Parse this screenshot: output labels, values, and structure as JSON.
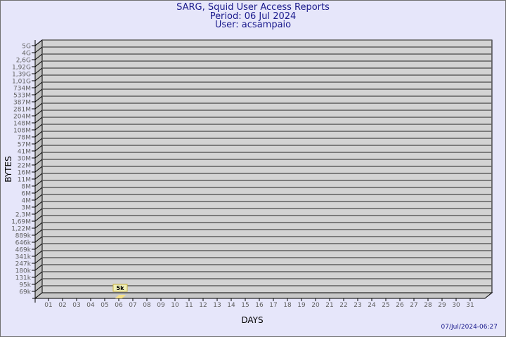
{
  "chart_data": {
    "type": "bar",
    "title": "SARG, Squid User Access Reports",
    "subtitle": [
      "Period: 06 Jul 2024",
      "User: acsampaio"
    ],
    "xlabel": "DAYS",
    "ylabel": "BYTES",
    "y_scale": "log",
    "y_tick_labels": [
      "5G",
      "4G",
      "2,6G",
      "1,92G",
      "1,39G",
      "1,01G",
      "734M",
      "533M",
      "387M",
      "281M",
      "204M",
      "148M",
      "108M",
      "78M",
      "57M",
      "41M",
      "30M",
      "22M",
      "16M",
      "11M",
      "8M",
      "6M",
      "4M",
      "3M",
      "2,3M",
      "1,69M",
      "1,22M",
      "889k",
      "646k",
      "469k",
      "341k",
      "247k",
      "180k",
      "131k",
      "95k",
      "69k"
    ],
    "categories": [
      "01",
      "02",
      "03",
      "04",
      "05",
      "06",
      "07",
      "08",
      "09",
      "10",
      "11",
      "12",
      "13",
      "14",
      "15",
      "16",
      "17",
      "18",
      "19",
      "20",
      "21",
      "22",
      "23",
      "24",
      "25",
      "26",
      "27",
      "28",
      "29",
      "30",
      "31"
    ],
    "series": [
      {
        "points": [
          {
            "x": "06",
            "value": 5000,
            "label": "5k"
          }
        ]
      }
    ],
    "grid": true,
    "colors": {
      "background": "#e6e6fa",
      "plot": "#d3d3d3",
      "bar": "#f5e08a",
      "label_box": "#f0f0b8",
      "title": "#1a1a8c",
      "ticks": "#606060"
    }
  },
  "footer": {
    "timestamp": "07/Jul/2024-06:27"
  }
}
